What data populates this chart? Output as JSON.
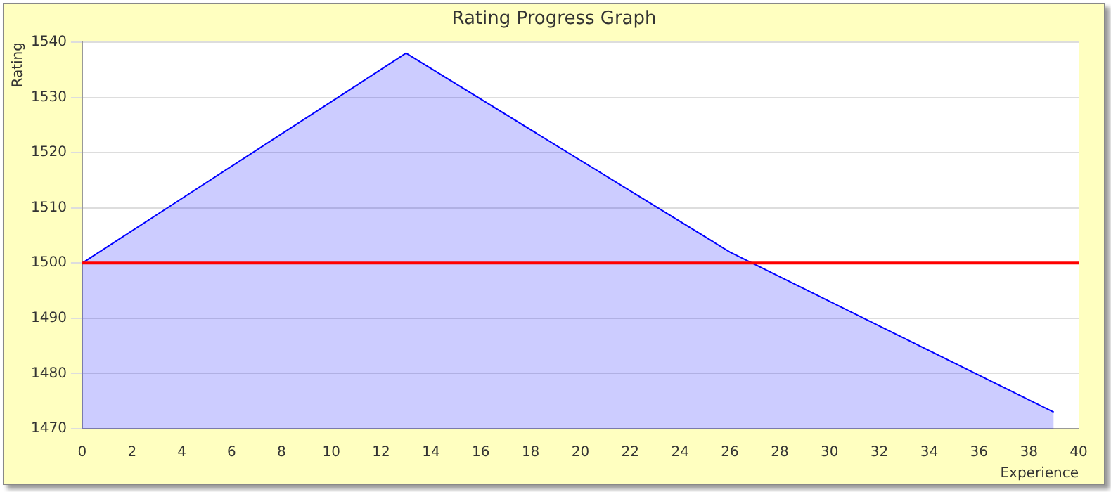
{
  "chart_data": {
    "type": "area",
    "title": "Rating Progress Graph",
    "xlabel": "Experience",
    "ylabel": "Rating",
    "x": [
      0,
      13,
      26,
      39
    ],
    "series": [
      {
        "color": "#0000ff",
        "values": [
          1500,
          1538,
          1502,
          1473
        ]
      }
    ],
    "xlim": [
      0,
      40
    ],
    "xticks": [
      0,
      2,
      4,
      6,
      8,
      10,
      12,
      14,
      16,
      18,
      20,
      22,
      24,
      26,
      28,
      30,
      32,
      34,
      36,
      38,
      40
    ],
    "ylim": [
      1470,
      1540
    ],
    "yticks": [
      1470,
      1480,
      1490,
      1500,
      1510,
      1520,
      1530,
      1540
    ],
    "ref_lines": [
      {
        "axis": "y",
        "value": 1500,
        "color": "#ff0000"
      }
    ],
    "grid": "y",
    "legend": false,
    "marker": "none"
  }
}
